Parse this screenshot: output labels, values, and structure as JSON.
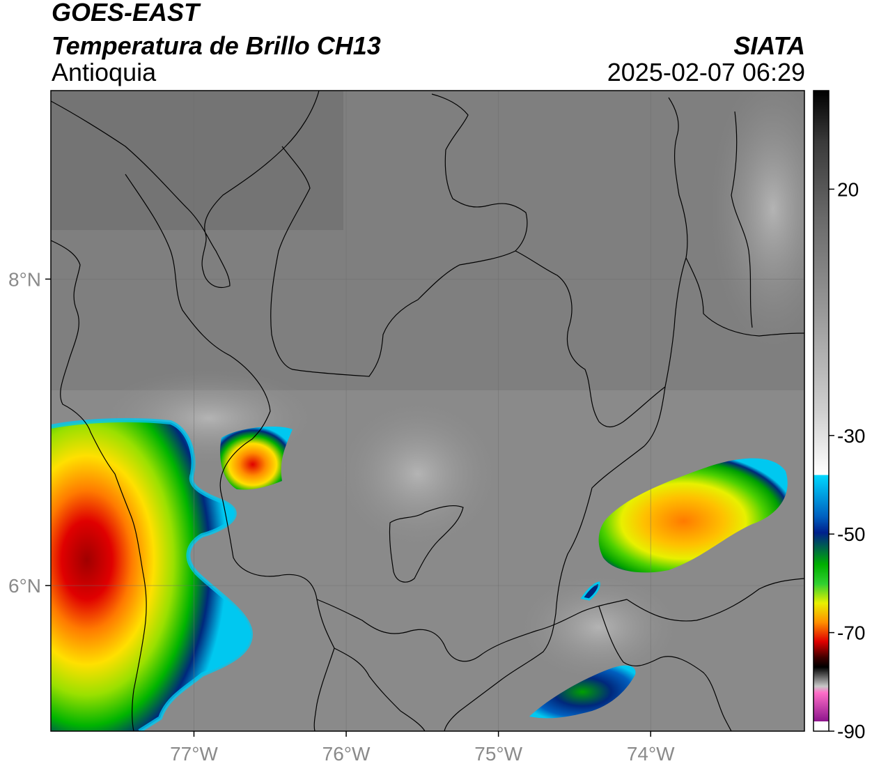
{
  "header": {
    "satellite": "GOES-EAST",
    "product": "Temperatura de Brillo CH13",
    "region": "Antioquia",
    "source": "SIATA",
    "datetime": "2025-02-07 06:29"
  },
  "map": {
    "lon_ticks": [
      {
        "lon": -77,
        "label": "77°W"
      },
      {
        "lon": -76,
        "label": "76°W"
      },
      {
        "lon": -75,
        "label": "75°W"
      },
      {
        "lon": -74,
        "label": "74°W"
      }
    ],
    "lat_ticks": [
      {
        "lat": 8,
        "label": "8°N"
      },
      {
        "lat": 6,
        "label": "6°N"
      }
    ],
    "lon_range": [
      -77.94,
      -72.99
    ],
    "lat_range": [
      5.05,
      9.23
    ],
    "grid": true
  },
  "colorbar": {
    "range": [
      -90,
      40
    ],
    "ticks": [
      {
        "value": 20,
        "label": "20"
      },
      {
        "value": -30,
        "label": "-30"
      },
      {
        "value": -50,
        "label": "-50"
      },
      {
        "value": -70,
        "label": "-70"
      },
      {
        "value": -90,
        "label": "-90"
      }
    ],
    "colors": {
      "warm_top": "#000000",
      "gray_mid": "#8c8c8c",
      "white": "#ffffff",
      "cyan": "#00d8ff",
      "blue": "#00208c",
      "green": "#00b000",
      "yellow": "#ffff00",
      "orange": "#ff8c00",
      "red": "#e00000",
      "black": "#000000",
      "pink": "#ff6ec8",
      "purple": "#8c148c"
    }
  }
}
